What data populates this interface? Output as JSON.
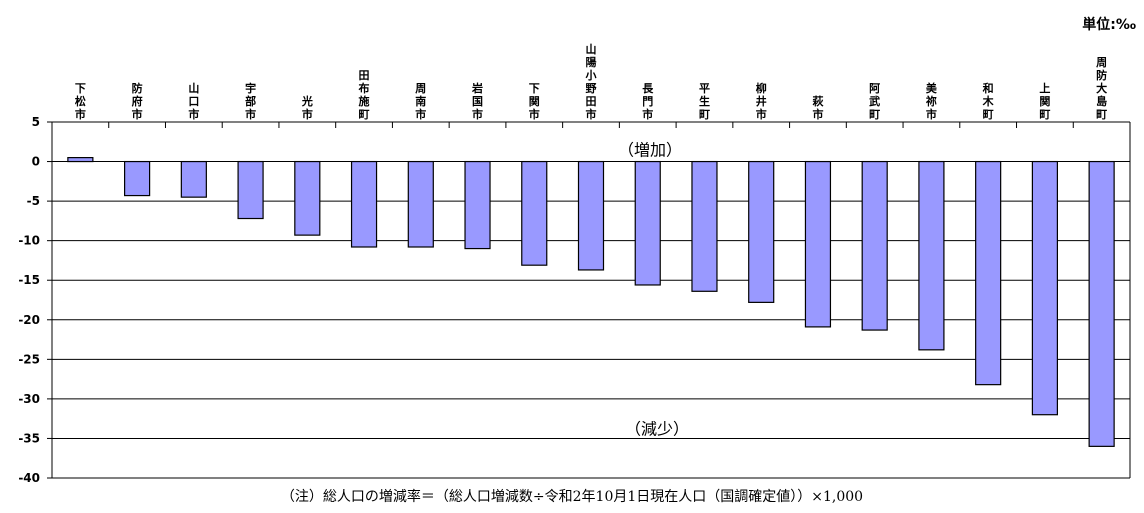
{
  "chart_data": {
    "type": "bar",
    "unit_label": "単位:‰",
    "categories": [
      "下松市",
      "防府市",
      "山口市",
      "宇部市",
      "光市",
      "田布施町",
      "周南市",
      "岩国市",
      "下関市",
      "山陽小野田市",
      "長門市",
      "平生町",
      "柳井市",
      "萩市",
      "阿武町",
      "美祢市",
      "和木町",
      "上関町",
      "周防大島町"
    ],
    "values": [
      0.5,
      -4.3,
      -4.5,
      -7.2,
      -9.3,
      -10.8,
      -10.8,
      -11.0,
      -13.1,
      -13.7,
      -15.6,
      -16.4,
      -17.8,
      -20.9,
      -21.3,
      -23.8,
      -28.2,
      -32.0,
      -36.0
    ],
    "ylim": [
      -40,
      5
    ],
    "yticks": [
      5,
      0,
      -5,
      -10,
      -15,
      -20,
      -25,
      -30,
      -35,
      -40
    ],
    "grid": true,
    "annotations": {
      "increase": "（増加）",
      "decrease": "（減少）"
    },
    "bar_color": "#9999ff",
    "note": "（注）総人口の増減率＝（総人口増減数÷令和2年10月1日現在人口（国調確定値））×1,000"
  }
}
